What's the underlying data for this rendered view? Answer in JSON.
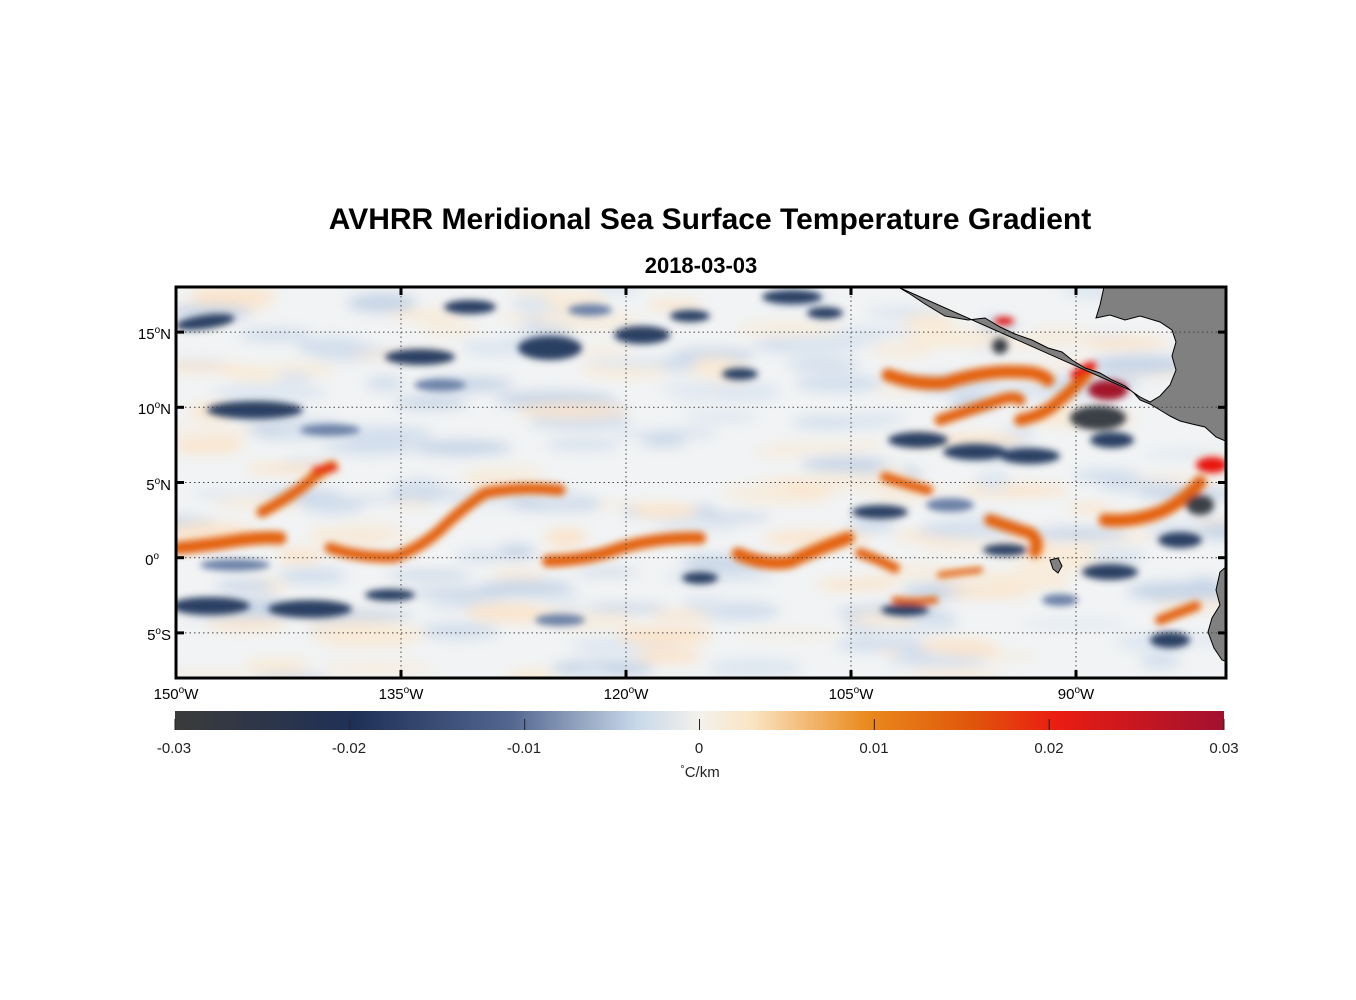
{
  "title": "AVHRR Meridional Sea Surface Temperature Gradient",
  "subtitle": "2018-03-03",
  "map": {
    "region": {
      "lon_range": [
        -150,
        -80
      ],
      "lat_range": [
        -8,
        18
      ]
    },
    "lat_labels": [
      {
        "deg": "15",
        "unit": "o",
        "hemi": "N",
        "value": 15
      },
      {
        "deg": "10",
        "unit": "o",
        "hemi": "N",
        "value": 10
      },
      {
        "deg": "5",
        "unit": "o",
        "hemi": "N",
        "value": 5
      },
      {
        "deg": "0",
        "unit": "o",
        "hemi": "",
        "value": 0
      },
      {
        "deg": "5",
        "unit": "o",
        "hemi": "S",
        "value": -5
      }
    ],
    "lon_labels": [
      {
        "deg": "150",
        "unit": "o",
        "hemi": "W",
        "value": -150
      },
      {
        "deg": "135",
        "unit": "o",
        "hemi": "W",
        "value": -135
      },
      {
        "deg": "120",
        "unit": "o",
        "hemi": "W",
        "value": -120
      },
      {
        "deg": "105",
        "unit": "o",
        "hemi": "W",
        "value": -105
      },
      {
        "deg": "90",
        "unit": "o",
        "hemi": "W",
        "value": -90
      }
    ],
    "colors": {
      "land": "#808080",
      "gridline": "#444444"
    }
  },
  "colorbar": {
    "ticks": [
      "-0.03",
      "-0.02",
      "-0.01",
      "0",
      "0.01",
      "0.02",
      "0.03"
    ],
    "tick_values": [
      -0.03,
      -0.02,
      -0.01,
      0,
      0.01,
      0.02,
      0.03
    ],
    "unit_prefix": "°",
    "unit_label": "C/km",
    "colormap": [
      "#3b3b3b",
      "#1f3057",
      "#52668f",
      "#c8d8ea",
      "#f3f1ec",
      "#fbe4c3",
      "#e98a1d",
      "#e0560a",
      "#ea1d12",
      "#a2102f"
    ]
  }
}
